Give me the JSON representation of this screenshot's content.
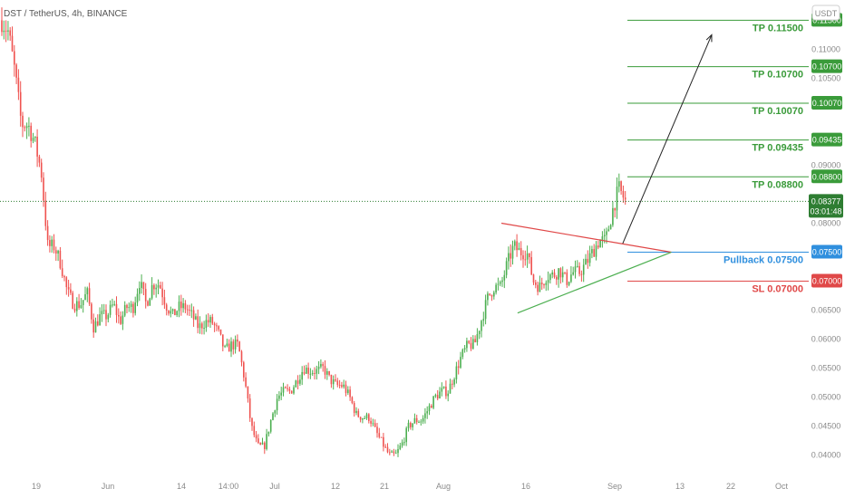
{
  "header": {
    "symbol_line": "DST / TetherUS, 4h, BINANCE",
    "currency": "USDT"
  },
  "chart_data": {
    "type": "candlestick",
    "ylim": [
      0.0365,
      0.1185
    ],
    "x_tick_labels": [
      "19",
      "Jun",
      "14",
      "14:00",
      "Jul",
      "12",
      "21",
      "Aug",
      "16",
      "Sep",
      "13",
      "22",
      "Oct"
    ],
    "y_tick_labels": [
      "0.04000",
      "0.04500",
      "0.05000",
      "0.05500",
      "0.06000",
      "0.06500",
      "0.07000",
      "0.07500",
      "0.08000",
      "0.08500",
      "0.09000",
      "0.09500",
      "0.10000",
      "0.10500",
      "0.11000",
      "0.11500"
    ],
    "y_ticks": [
      0.04,
      0.045,
      0.05,
      0.055,
      0.06,
      0.065,
      0.07,
      0.075,
      0.08,
      0.085,
      0.09,
      0.095,
      0.1,
      0.105,
      0.11,
      0.115
    ],
    "price_path": [
      [
        0.115,
        0.113,
        0.106,
        0.097
      ],
      [
        0.097,
        0.094,
        0.089,
        0.076
      ],
      [
        0.076,
        0.073,
        0.068,
        0.066
      ],
      [
        0.066,
        0.068,
        0.062,
        0.064
      ],
      [
        0.064,
        0.066,
        0.063,
        0.0655
      ],
      [
        0.0655,
        0.07,
        0.066,
        0.0695
      ],
      [
        0.0695,
        0.066,
        0.064,
        0.0655
      ],
      [
        0.0655,
        0.064,
        0.062,
        0.063
      ],
      [
        0.063,
        0.061,
        0.058,
        0.059
      ],
      [
        0.059,
        0.053,
        0.045,
        0.0415
      ],
      [
        0.0415,
        0.046,
        0.05,
        0.051
      ],
      [
        0.051,
        0.053,
        0.055,
        0.0545
      ],
      [
        0.0545,
        0.055,
        0.053,
        0.052
      ],
      [
        0.052,
        0.05,
        0.047,
        0.0465
      ],
      [
        0.0465,
        0.044,
        0.042,
        0.04
      ],
      [
        0.04,
        0.042,
        0.045,
        0.046
      ],
      [
        0.046,
        0.048,
        0.05,
        0.051
      ],
      [
        0.051,
        0.054,
        0.057,
        0.059
      ],
      [
        0.059,
        0.063,
        0.067,
        0.069
      ],
      [
        0.069,
        0.073,
        0.076,
        0.075
      ],
      [
        0.075,
        0.07,
        0.069,
        0.071
      ],
      [
        0.071,
        0.072,
        0.07,
        0.0715
      ],
      [
        0.0715,
        0.073,
        0.075,
        0.077
      ],
      [
        0.077,
        0.082,
        0.086,
        0.0838
      ]
    ],
    "candle_count": 300,
    "current_price": {
      "value": "0.08377",
      "countdown": "03:01:48",
      "level": 0.08377
    },
    "triangle": {
      "upper": [
        [
          0.62,
          0.08
        ],
        [
          0.83,
          0.075
        ]
      ],
      "lower": [
        [
          0.64,
          0.0645
        ],
        [
          0.83,
          0.075
        ]
      ]
    },
    "projection_arrow": {
      "from": [
        0.77,
        0.0765
      ],
      "to": [
        0.88,
        0.1125
      ]
    },
    "levels": [
      {
        "label": "TP 0.11500",
        "tag": "0.11500",
        "value": 0.115,
        "color": "#3a9b3a",
        "kind": "tp"
      },
      {
        "label": "TP 0.10700",
        "tag": "0.10700",
        "value": 0.107,
        "color": "#3a9b3a",
        "kind": "tp"
      },
      {
        "label": "TP 0.10070",
        "tag": "0.10070",
        "value": 0.1007,
        "color": "#3a9b3a",
        "kind": "tp"
      },
      {
        "label": "TP 0.09435",
        "tag": "0.09435",
        "value": 0.09435,
        "color": "#3a9b3a",
        "kind": "tp"
      },
      {
        "label": "TP 0.08800",
        "tag": "0.08800",
        "value": 0.088,
        "color": "#3a9b3a",
        "kind": "tp"
      },
      {
        "label": "Pullback 0.07500",
        "tag": "0.07500",
        "value": 0.075,
        "color": "#2f8fde",
        "kind": "pullback"
      },
      {
        "label": "SL 0.07000",
        "tag": "0.07000",
        "value": 0.07,
        "color": "#e04848",
        "kind": "sl"
      }
    ],
    "colors": {
      "up": "#4caf50",
      "down": "#ef5350",
      "tp": "#3a9b3a",
      "pullback": "#2f8fde",
      "sl": "#e04848",
      "current": "#2e7d32"
    }
  }
}
